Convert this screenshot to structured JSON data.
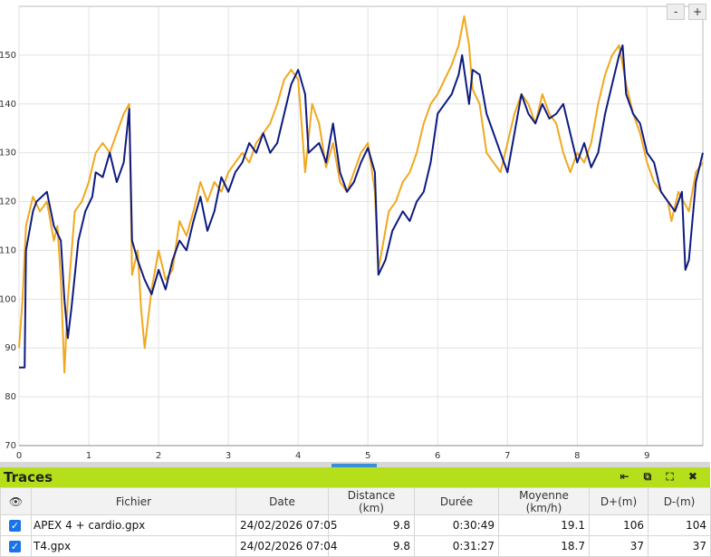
{
  "chart_data": {
    "type": "line",
    "xlim": [
      0,
      9.8
    ],
    "xticks": [
      0,
      1,
      2,
      3,
      4,
      5,
      6,
      7,
      8,
      9
    ],
    "ylim": [
      70,
      160
    ],
    "yticks": [
      70,
      80,
      90,
      100,
      110,
      120,
      130,
      140,
      150
    ],
    "grid": true,
    "series": [
      {
        "color": "#f0a81e",
        "x": [
          0,
          0.05,
          0.1,
          0.2,
          0.3,
          0.4,
          0.5,
          0.55,
          0.6,
          0.65,
          0.7,
          0.8,
          0.9,
          1.0,
          1.1,
          1.2,
          1.3,
          1.4,
          1.5,
          1.58,
          1.62,
          1.7,
          1.75,
          1.8,
          1.9,
          2.0,
          2.1,
          2.2,
          2.3,
          2.4,
          2.5,
          2.6,
          2.7,
          2.8,
          2.9,
          3.0,
          3.1,
          3.2,
          3.3,
          3.4,
          3.5,
          3.6,
          3.7,
          3.8,
          3.9,
          4.0,
          4.05,
          4.1,
          4.2,
          4.3,
          4.4,
          4.5,
          4.6,
          4.7,
          4.8,
          4.9,
          5.0,
          5.1,
          5.15,
          5.2,
          5.3,
          5.4,
          5.5,
          5.6,
          5.7,
          5.8,
          5.9,
          6.0,
          6.1,
          6.2,
          6.3,
          6.38,
          6.45,
          6.5,
          6.6,
          6.7,
          6.8,
          6.9,
          7.0,
          7.1,
          7.2,
          7.3,
          7.4,
          7.5,
          7.6,
          7.7,
          7.8,
          7.9,
          8.0,
          8.1,
          8.2,
          8.3,
          8.4,
          8.5,
          8.6,
          8.7,
          8.8,
          8.9,
          9.0,
          9.1,
          9.2,
          9.3,
          9.35,
          9.45,
          9.6,
          9.7,
          9.8
        ],
        "values": [
          90,
          100,
          115,
          121,
          118,
          120,
          112,
          115,
          104,
          85,
          100,
          118,
          120,
          124,
          130,
          132,
          130,
          134,
          138,
          140,
          105,
          110,
          98,
          90,
          102,
          110,
          104,
          106,
          116,
          113,
          118,
          124,
          120,
          124,
          122,
          126,
          128,
          130,
          128,
          132,
          134,
          136,
          140,
          145,
          147,
          145,
          136,
          126,
          140,
          136,
          127,
          132,
          124,
          122,
          126,
          130,
          132,
          122,
          106,
          110,
          118,
          120,
          124,
          126,
          130,
          136,
          140,
          142,
          145,
          148,
          152,
          158,
          152,
          143,
          140,
          130,
          128,
          126,
          132,
          138,
          142,
          140,
          136,
          142,
          138,
          136,
          130,
          126,
          130,
          128,
          132,
          140,
          146,
          150,
          152,
          144,
          138,
          134,
          128,
          124,
          122,
          120,
          116,
          122,
          118,
          126,
          128
        ]
      },
      {
        "color": "#0d1a80",
        "x": [
          0,
          0.08,
          0.1,
          0.2,
          0.25,
          0.4,
          0.5,
          0.6,
          0.65,
          0.7,
          0.75,
          0.85,
          0.95,
          1.05,
          1.1,
          1.2,
          1.3,
          1.4,
          1.5,
          1.58,
          1.62,
          1.7,
          1.8,
          1.9,
          2.0,
          2.1,
          2.2,
          2.3,
          2.4,
          2.5,
          2.6,
          2.7,
          2.8,
          2.9,
          3.0,
          3.1,
          3.2,
          3.3,
          3.4,
          3.5,
          3.6,
          3.7,
          3.8,
          3.9,
          4.0,
          4.1,
          4.15,
          4.3,
          4.4,
          4.5,
          4.6,
          4.7,
          4.8,
          4.9,
          5.0,
          5.1,
          5.15,
          5.25,
          5.35,
          5.5,
          5.6,
          5.7,
          5.8,
          5.9,
          6.0,
          6.1,
          6.2,
          6.3,
          6.35,
          6.45,
          6.5,
          6.6,
          6.7,
          6.8,
          6.9,
          7.0,
          7.1,
          7.2,
          7.3,
          7.4,
          7.5,
          7.6,
          7.7,
          7.8,
          7.9,
          8.0,
          8.1,
          8.2,
          8.3,
          8.4,
          8.5,
          8.6,
          8.65,
          8.7,
          8.8,
          8.9,
          9.0,
          9.1,
          9.2,
          9.3,
          9.4,
          9.5,
          9.55,
          9.6,
          9.7,
          9.8
        ],
        "values": [
          86,
          86,
          110,
          118,
          120,
          122,
          115,
          112,
          100,
          92,
          98,
          112,
          118,
          121,
          126,
          125,
          130,
          124,
          128,
          139,
          112,
          108,
          104,
          101,
          106,
          102,
          108,
          112,
          110,
          116,
          121,
          114,
          118,
          125,
          122,
          126,
          128,
          132,
          130,
          134,
          130,
          132,
          138,
          144,
          147,
          142,
          130,
          132,
          128,
          136,
          126,
          122,
          124,
          128,
          131,
          126,
          105,
          108,
          114,
          118,
          116,
          120,
          122,
          128,
          138,
          140,
          142,
          146,
          150,
          140,
          147,
          146,
          138,
          134,
          130,
          126,
          134,
          142,
          138,
          136,
          140,
          137,
          138,
          140,
          134,
          128,
          132,
          127,
          130,
          138,
          144,
          150,
          152,
          142,
          138,
          136,
          130,
          128,
          122,
          120,
          118,
          122,
          106,
          108,
          124,
          130
        ]
      }
    ]
  },
  "zoom": [
    "-",
    "+"
  ],
  "panel": {
    "title": "Traces",
    "columns": [
      {
        "label": "Fichier"
      },
      {
        "label": "Date"
      },
      {
        "label": "Distance",
        "unit": "(km)"
      },
      {
        "label": "Durée"
      },
      {
        "label": "Moyenne",
        "unit": "(km/h)"
      },
      {
        "label": "D+(m)"
      },
      {
        "label": "D-(m)"
      }
    ],
    "rows": [
      [
        "APEX 4 + cardio.gpx",
        "24/02/2026 07:05",
        9.8,
        "0:30:49",
        19.1,
        106,
        104
      ],
      [
        "T4.gpx",
        "24/02/2026 07:04",
        9.8,
        "0:31:27",
        18.7,
        37,
        37
      ]
    ]
  }
}
